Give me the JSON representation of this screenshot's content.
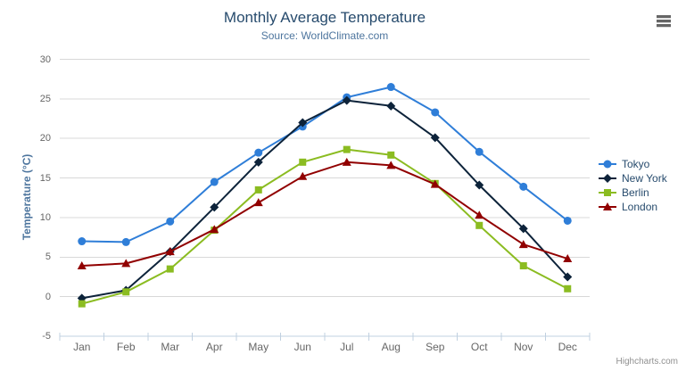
{
  "chart_data": {
    "type": "line",
    "title": "Monthly Average Temperature",
    "subtitle": "Source: WorldClimate.com",
    "categories": [
      "Jan",
      "Feb",
      "Mar",
      "Apr",
      "May",
      "Jun",
      "Jul",
      "Aug",
      "Sep",
      "Oct",
      "Nov",
      "Dec"
    ],
    "xlabel": "",
    "ylabel": "Temperature (°C)",
    "ylim": [
      -5,
      30
    ],
    "ytick_step": 5,
    "grid": true,
    "legend_position": "right-middle",
    "series": [
      {
        "name": "Tokyo",
        "color": "#2f7ed8",
        "marker": "circle",
        "values": [
          7.0,
          6.9,
          9.5,
          14.5,
          18.2,
          21.5,
          25.2,
          26.5,
          23.3,
          18.3,
          13.9,
          9.6
        ]
      },
      {
        "name": "New York",
        "color": "#0d233a",
        "marker": "diamond",
        "values": [
          -0.2,
          0.8,
          5.7,
          11.3,
          17.0,
          22.0,
          24.8,
          24.1,
          20.1,
          14.1,
          8.6,
          2.5
        ]
      },
      {
        "name": "Berlin",
        "color": "#8bbc21",
        "marker": "square",
        "values": [
          -0.9,
          0.6,
          3.5,
          8.4,
          13.5,
          17.0,
          18.6,
          17.9,
          14.3,
          9.0,
          3.9,
          1.0
        ]
      },
      {
        "name": "London",
        "color": "#910000",
        "marker": "triangle",
        "values": [
          3.9,
          4.2,
          5.7,
          8.5,
          11.9,
          15.2,
          17.0,
          16.6,
          14.2,
          10.3,
          6.6,
          4.8
        ]
      }
    ]
  },
  "credit": "Highcharts.com",
  "icons": {
    "context_menu": "hamburger-icon"
  },
  "colors": {
    "title": "#274b6d",
    "subtitle": "#4d759e",
    "axis_title": "#4d759e",
    "axis_label": "#666666",
    "grid_line": "#d8d8d8",
    "axis_line": "#c0d0e0",
    "legend_text": "#274b6d",
    "background": "#ffffff"
  }
}
